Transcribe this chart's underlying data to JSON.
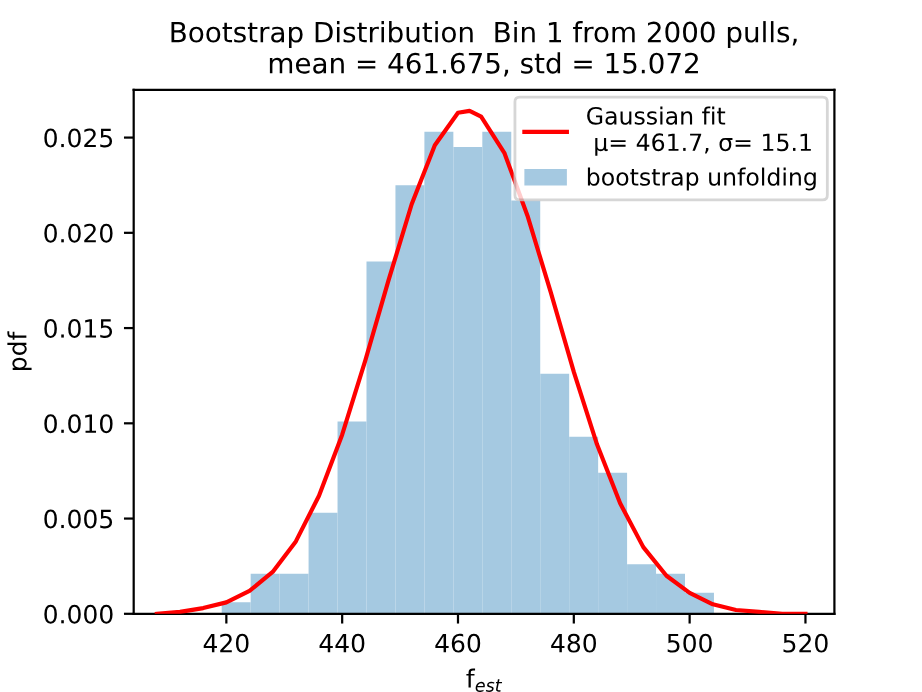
{
  "chart_data": {
    "type": "histogram",
    "title": "Bootstrap Distribution  Bin 1 from 2000 pulls,\nmean = 461.675, std = 15.072",
    "xlabel": "f$_{est}$",
    "ylabel": "pdf",
    "series": [
      {
        "name": "Gaussian fit\n μ= 461.7, σ= 15.1",
        "type": "line",
        "color": "#ff0000",
        "x": [
          408,
          412,
          416,
          420,
          424,
          428,
          432,
          436,
          440,
          444,
          448,
          452,
          456,
          460,
          462,
          464,
          468,
          472,
          476,
          480,
          484,
          488,
          492,
          496,
          500,
          504,
          508,
          512,
          516,
          520
        ],
        "values": [
          0.0,
          0.0001,
          0.0003,
          0.0006,
          0.0012,
          0.0022,
          0.0038,
          0.0062,
          0.0094,
          0.0133,
          0.0175,
          0.0215,
          0.0246,
          0.0263,
          0.0264,
          0.0261,
          0.0242,
          0.0209,
          0.0169,
          0.0127,
          0.0089,
          0.0058,
          0.0035,
          0.002,
          0.0011,
          0.0005,
          0.0002,
          0.0001,
          0.0,
          0.0
        ]
      },
      {
        "name": "bootstrap unfolding",
        "color": "#a5c9e1",
        "bins": [
          419.2,
          424.2,
          429.2,
          434.2,
          439.2,
          444.2,
          449.2,
          454.2,
          459.2,
          464.2,
          469.2,
          474.2,
          479.2,
          484.2,
          489.2,
          494.2,
          499.2,
          504.2
        ],
        "values": [
          0.0006,
          0.0021,
          0.0021,
          0.0053,
          0.0101,
          0.0185,
          0.0225,
          0.0253,
          0.0245,
          0.0253,
          0.0217,
          0.0126,
          0.0093,
          0.0074,
          0.0026,
          0.0021,
          0.0011
        ]
      }
    ],
    "xlim": [
      404,
      525
    ],
    "ylim": [
      0,
      0.0275
    ],
    "xticks": [
      420,
      440,
      460,
      480,
      500,
      520
    ],
    "yticks": [
      {
        "value": 0,
        "label": "0.000"
      },
      {
        "value": 0.005,
        "label": "0.005"
      },
      {
        "value": 0.01,
        "label": "0.010"
      },
      {
        "value": 0.015,
        "label": "0.015"
      },
      {
        "value": 0.02,
        "label": "0.020"
      },
      {
        "value": 0.025,
        "label": "0.025"
      }
    ],
    "grid": false,
    "legend": "top right"
  }
}
